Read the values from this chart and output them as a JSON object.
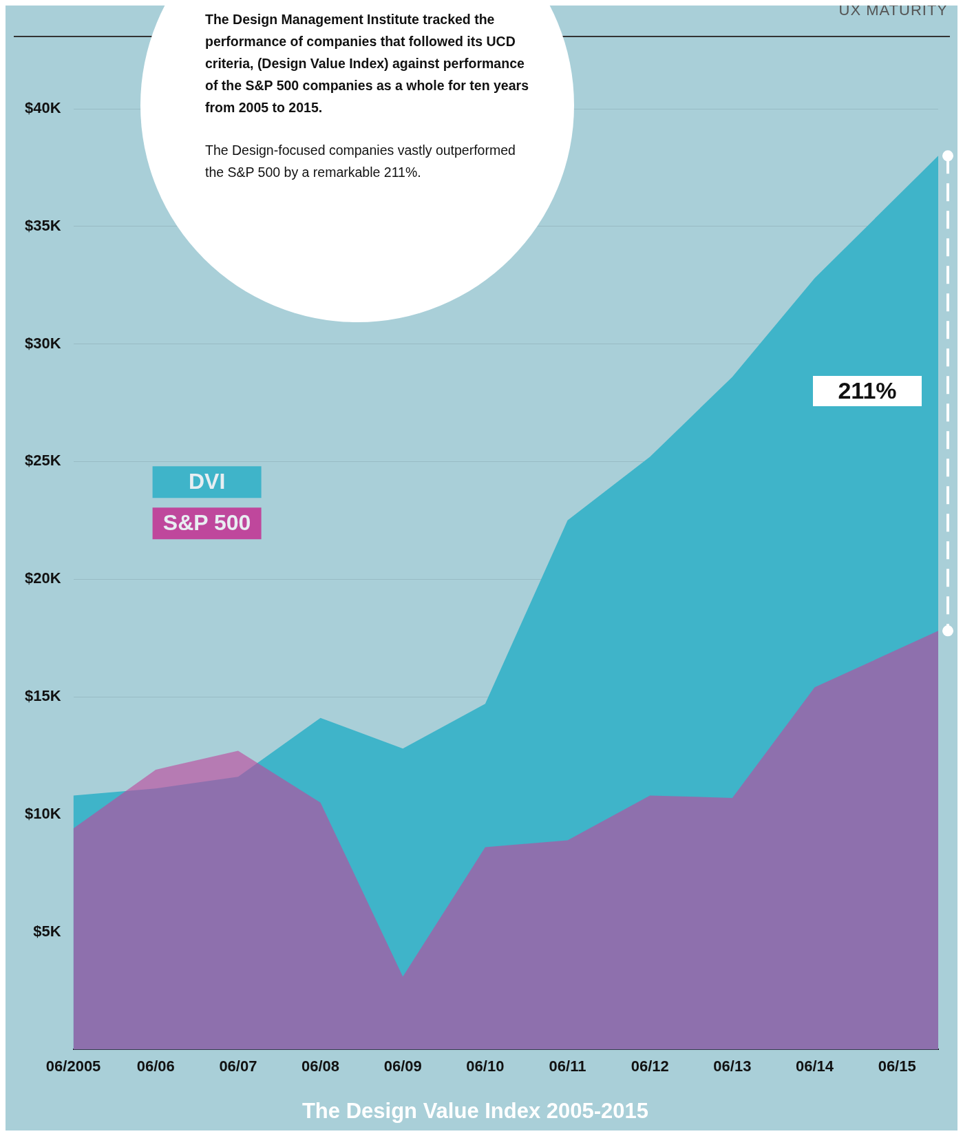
{
  "chart_data": {
    "type": "area",
    "title": "The Design Value Index 2005-2015",
    "x": [
      "2005-06",
      "2006-06",
      "2007-06",
      "2008-06",
      "2009-06",
      "2010-06",
      "2011-06",
      "2012-06",
      "2013-06",
      "2014-06",
      "2015-12"
    ],
    "series": [
      {
        "name": "DVI",
        "color": "#3fb4c9",
        "values": [
          10.8,
          11.1,
          11.6,
          14.1,
          12.8,
          14.7,
          22.5,
          25.2,
          28.6,
          32.8,
          38.0
        ]
      },
      {
        "name": "S&P 500",
        "color": "#bf479c",
        "values": [
          9.4,
          11.9,
          12.7,
          10.5,
          3.1,
          8.6,
          8.9,
          10.8,
          10.7,
          15.4,
          17.8
        ]
      }
    ],
    "xlim": [
      "2005-06",
      "2015-12"
    ],
    "xticks": [
      {
        "value": "2005-06",
        "label": "06/2005"
      },
      {
        "value": "2006-06",
        "label": "06/06"
      },
      {
        "value": "2007-06",
        "label": "06/07"
      },
      {
        "value": "2008-06",
        "label": "06/08"
      },
      {
        "value": "2009-06",
        "label": "06/09"
      },
      {
        "value": "2010-06",
        "label": "06/10"
      },
      {
        "value": "2011-06",
        "label": "06/11"
      },
      {
        "value": "2012-06",
        "label": "06/12"
      },
      {
        "value": "2013-06",
        "label": "06/13"
      },
      {
        "value": "2014-06",
        "label": "06/14"
      },
      {
        "value": "2015-06",
        "label": "06/15"
      }
    ],
    "ylim": [
      0,
      40
    ],
    "yticks": [
      {
        "value": 5,
        "label": "$5K"
      },
      {
        "value": 10,
        "label": "$10K"
      },
      {
        "value": 15,
        "label": "$15K"
      },
      {
        "value": 20,
        "label": "$20K"
      },
      {
        "value": 25,
        "label": "$25K"
      },
      {
        "value": 30,
        "label": "$30K"
      },
      {
        "value": 35,
        "label": "$35K"
      },
      {
        "value": 40,
        "label": "$40K"
      }
    ],
    "grid": "y",
    "legend": "left",
    "annotations": [
      "UX MATURITY",
      "The Design Management Institute tracked the performance of companies that followed its UCD criteria, (Design Value Index) against performance of the S&P 500 companies as a whole for ten years from 2005 to 2015.",
      "The Design-focused companies vastly outperformed the S&P 500 by a remarkable 211%.",
      {
        "text": "211%",
        "x": "2015-12",
        "y": 28
      }
    ]
  }
}
